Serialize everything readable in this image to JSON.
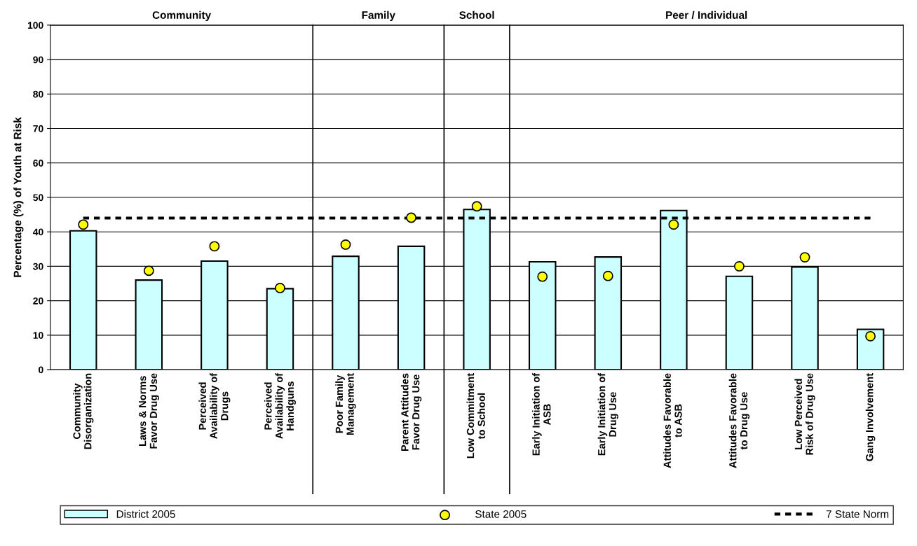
{
  "chart_data": {
    "type": "bar",
    "ylabel": "Percentage (%) of Youth at Risk",
    "categories": [
      "Community\nDisorganization",
      "Laws & Norms\nFavor Drug Use",
      "Perceived\nAvailability of\nDrugs",
      "Perceived\nAvailability of\nHandguns",
      "Poor Family\nManagement",
      "Parent Attitudes\nFavor Drug Use",
      "Low Commitment\nto School",
      "Early Initiation of\nASB",
      "Early Initiation of\nDrug Use",
      "Attitudes Favorable\nto ASB",
      "Attitudes Favorable\nto Drug Use",
      "Low Perceived\nRisk of Drug Use",
      "Gang Involvement"
    ],
    "series": [
      {
        "name": "District 2005",
        "color": "#ccffff",
        "values": [
          40.3,
          26.0,
          31.5,
          23.5,
          32.9,
          35.8,
          46.5,
          31.3,
          32.7,
          46.2,
          27.1,
          29.8,
          11.7
        ]
      },
      {
        "name": "State 2005",
        "type": "scatter",
        "color": "#ffff00",
        "marker": "circle",
        "values": [
          42.1,
          28.7,
          35.8,
          23.7,
          36.3,
          44.1,
          47.4,
          27.0,
          27.2,
          42.1,
          30.0,
          32.6,
          9.7
        ]
      },
      {
        "name": "7 State Norm",
        "type": "line",
        "color": "#000000",
        "line_style": "dashed",
        "marker": "none",
        "values": [
          44,
          44,
          44,
          44,
          44,
          44,
          44,
          44,
          44,
          44,
          44,
          44,
          44
        ]
      }
    ],
    "annotations": [
      "Community",
      "Family",
      "School",
      "Peer / Individual"
    ],
    "ylim": [
      0,
      100
    ],
    "yticks": [
      0,
      10,
      20,
      30,
      40,
      50,
      60,
      70,
      80,
      90,
      100
    ],
    "grid": "y",
    "legend": "bottom"
  }
}
